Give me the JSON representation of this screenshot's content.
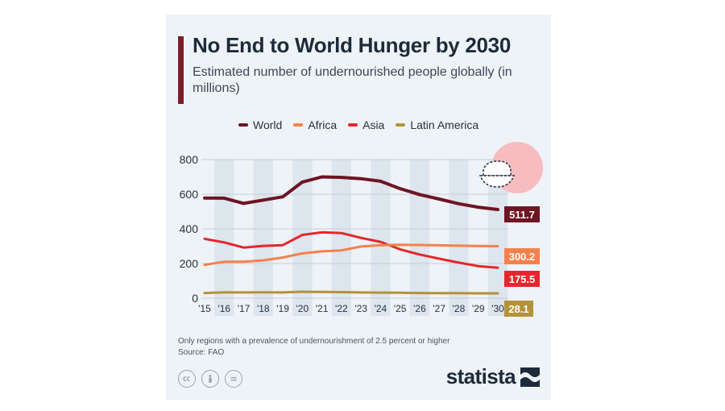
{
  "header": {
    "title": "No End to World Hunger by 2030",
    "subtitle": "Estimated number of undernourished people globally (in millions)"
  },
  "footer": {
    "note": "Only regions with a prevalence of undernourishment of 2.5 percent or higher",
    "source": "Source: FAO",
    "brand": "statista"
  },
  "icons": [
    "cc-icon",
    "person-icon",
    "equals-icon",
    "bowl-icon",
    "statista-logo-icon"
  ],
  "colors": {
    "World": "#6e1423",
    "Africa": "#f4814d",
    "Asia": "#e4262d",
    "Latin America": "#b3923a",
    "accent": "#7b1e2a"
  },
  "chart_data": {
    "type": "line",
    "title": "No End to World Hunger by 2030",
    "subtitle": "Estimated number of undernourished people globally (in millions)",
    "xlabel": "",
    "ylabel": "",
    "x": [
      "'15",
      "'16",
      "'17",
      "'18",
      "'19",
      "'20",
      "'21",
      "'22",
      "'23",
      "'24",
      "'25",
      "'26",
      "'27",
      "'28",
      "'29",
      "'30"
    ],
    "y_ticks": [
      0,
      200,
      400,
      600,
      800
    ],
    "ylim": [
      0,
      800
    ],
    "grid": true,
    "legend": "top",
    "series": [
      {
        "name": "World",
        "values": [
          578,
          577,
          547,
          566,
          585,
          670,
          700,
          697,
          690,
          675,
          632,
          598,
          572,
          545,
          525,
          511.7
        ],
        "end_label": "511.7"
      },
      {
        "name": "Africa",
        "values": [
          192,
          210,
          210,
          218,
          235,
          258,
          270,
          276,
          298,
          306,
          308,
          307,
          305,
          303,
          301,
          300.2
        ],
        "end_label": "300.2"
      },
      {
        "name": "Asia",
        "values": [
          343,
          322,
          292,
          302,
          306,
          365,
          380,
          376,
          348,
          325,
          282,
          252,
          228,
          205,
          185,
          175.5
        ],
        "end_label": "175.5"
      },
      {
        "name": "Latin America",
        "values": [
          30,
          34,
          33,
          34,
          33,
          37,
          36,
          35,
          33,
          32,
          31,
          30,
          29,
          29,
          28,
          28.1
        ],
        "end_label": "28.1"
      }
    ]
  }
}
